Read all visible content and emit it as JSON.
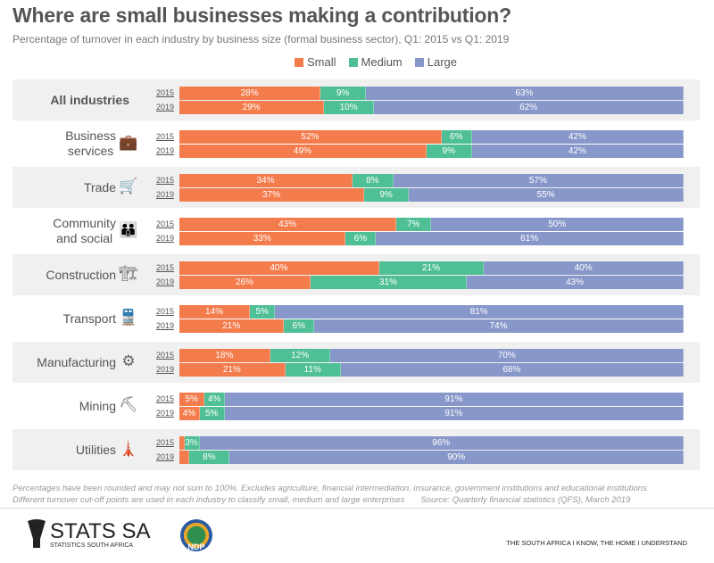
{
  "header": {
    "title": "Where are small businesses making a contribution?",
    "subtitle": "Percentage of turnover in each industry by business size (formal business sector), Q1: 2015 vs Q1: 2019"
  },
  "colors": {
    "Small": "#f47c4c",
    "Medium": "#4fbf96",
    "Large": "#8797c9",
    "band": "#f0f0f0"
  },
  "chart_data": {
    "type": "bar",
    "orientation": "horizontal",
    "stacked": true,
    "percent": true,
    "title": "Where are small businesses making a contribution?",
    "subtitle": "Percentage of turnover in each industry by business size (formal business sector), Q1: 2015 vs Q1: 2019",
    "legend": {
      "position": "top-center",
      "entries": [
        "Small",
        "Medium",
        "Large"
      ]
    },
    "series_names": [
      "Small",
      "Medium",
      "Large"
    ],
    "years": [
      "2015",
      "2019"
    ],
    "categories": [
      {
        "name": "All industries",
        "lines": [
          "All industries"
        ],
        "icon": "none",
        "bold": true,
        "values": {
          "2015": [
            28,
            9,
            63
          ],
          "2019": [
            29,
            10,
            62
          ]
        }
      },
      {
        "name": "Business services",
        "lines": [
          "Business",
          "services"
        ],
        "icon": "briefcase-icon",
        "values": {
          "2015": [
            52,
            6,
            42
          ],
          "2019": [
            49,
            9,
            42
          ]
        }
      },
      {
        "name": "Trade",
        "lines": [
          "Trade"
        ],
        "icon": "shopping-cart-icon",
        "values": {
          "2015": [
            34,
            8,
            57
          ],
          "2019": [
            37,
            9,
            55
          ]
        }
      },
      {
        "name": "Community and social",
        "lines": [
          "Community",
          "and social"
        ],
        "icon": "people-icon",
        "values": {
          "2015": [
            43,
            7,
            50
          ],
          "2019": [
            33,
            6,
            61
          ]
        }
      },
      {
        "name": "Construction",
        "lines": [
          "Construction"
        ],
        "icon": "construction-icon",
        "values": {
          "2015": [
            40,
            21,
            40
          ],
          "2019": [
            26,
            31,
            43
          ]
        }
      },
      {
        "name": "Transport",
        "lines": [
          "Transport"
        ],
        "icon": "train-icon",
        "values": {
          "2015": [
            14,
            5,
            81
          ],
          "2019": [
            21,
            6,
            74
          ]
        }
      },
      {
        "name": "Manufacturing",
        "lines": [
          "Manufacturing"
        ],
        "icon": "gear-icon",
        "values": {
          "2015": [
            18,
            12,
            70
          ],
          "2019": [
            21,
            11,
            68
          ]
        }
      },
      {
        "name": "Mining",
        "lines": [
          "Mining"
        ],
        "icon": "mine-cart-icon",
        "values": {
          "2015": [
            5,
            4,
            91
          ],
          "2019": [
            4,
            5,
            91
          ]
        }
      },
      {
        "name": "Utilities",
        "lines": [
          "Utilities"
        ],
        "icon": "power-icon",
        "values": {
          "2015": [
            null,
            3,
            96
          ],
          "2019": [
            null,
            8,
            90
          ]
        }
      }
    ]
  },
  "footer": {
    "note1": "Percentages have been rounded and may not sum to 100%. Excludes agriculture, financial intermediation, insurance, government institutions and educational institutions.",
    "note2": "Different turnover cut-off points are used in each industry to classify small, medium and large enterprises",
    "source": "Source: Quarterly financial statistics (QFS), March 2019",
    "logo_main": "STATS SA",
    "logo_sub": "STATISTICS SOUTH AFRICA",
    "ndp": "NDP",
    "tagline": "THE SOUTH AFRICA I KNOW, THE HOME I UNDERSTAND"
  }
}
